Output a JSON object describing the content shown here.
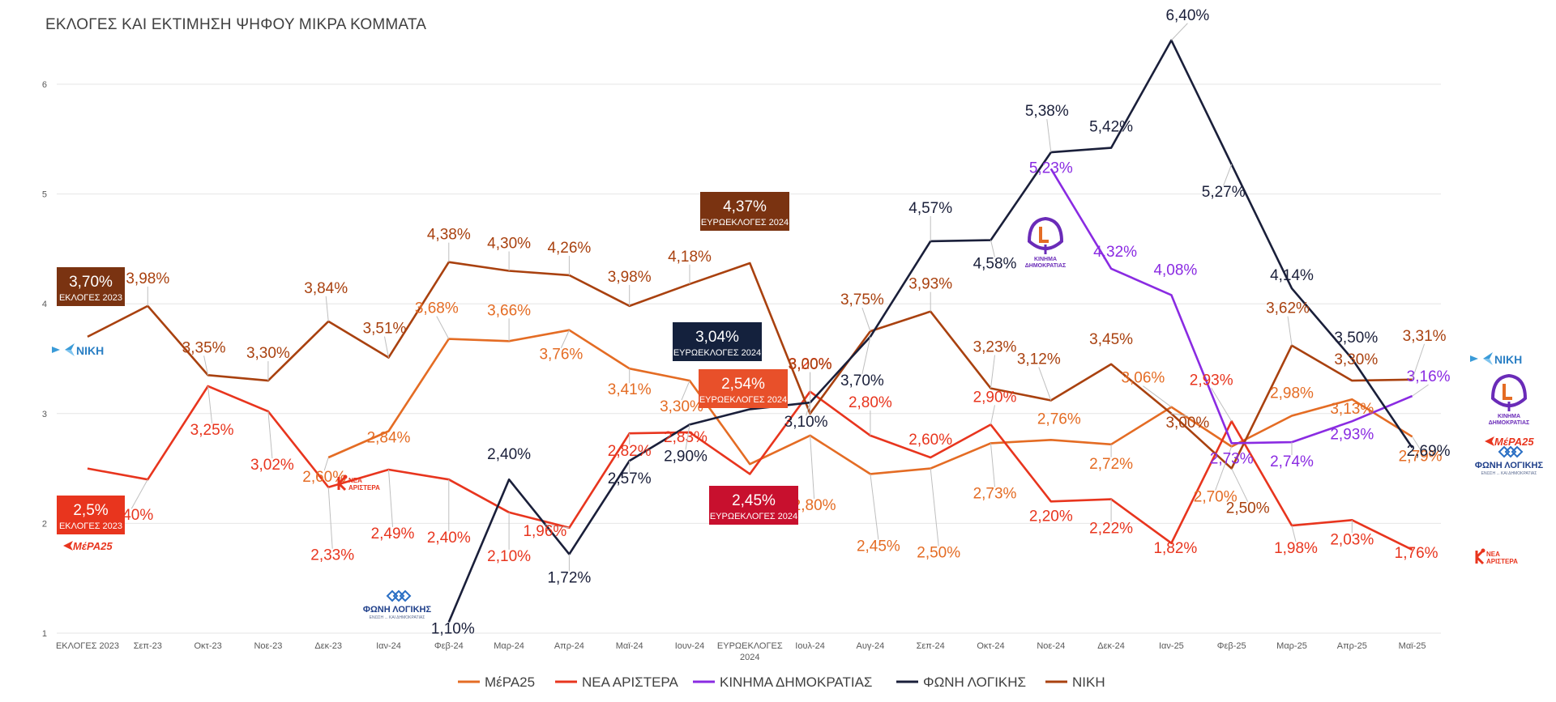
{
  "title": "ΕΚΛΟΓΕΣ ΚΑΙ ΕΚΤΙΜΗΣΗ  ΨΗΦΟΥ ΜΙΚΡΑ ΚΟΜΜΑΤΑ",
  "chart_data": {
    "type": "line",
    "title": "ΕΚΛΟΓΕΣ ΚΑΙ ΕΚΤΙΜΗΣΗ  ΨΗΦΟΥ ΜΙΚΡΑ ΚΟΜΜΑΤΑ",
    "categories": [
      "ΕΚΛΟΓΕΣ 2023",
      "Σεπ-23",
      "Οκτ-23",
      "Νοε-23",
      "Δεκ-23",
      "Ιαν-24",
      "Φεβ-24",
      "Μαρ-24",
      "Απρ-24",
      "Μαϊ-24",
      "Ιουν-24",
      "ΕΥΡΩΕΚΛΟΓΕΣ 2024",
      "Ιουλ-24",
      "Αυγ-24",
      "Σεπ-24",
      "Οκτ-24",
      "Νοε-24",
      "Δεκ-24",
      "Ιαν-25",
      "Φεβ-25",
      "Μαρ-25",
      "Απρ-25",
      "Μαϊ-25"
    ],
    "ylim": [
      1,
      6.6
    ],
    "yticks": [
      "1",
      "2",
      "3",
      "4",
      "5",
      "6"
    ],
    "grid": true,
    "legend_position": "bottom",
    "series": [
      {
        "name": "ΜέΡΑ25",
        "color": "#E46C24",
        "values": [
          null,
          null,
          null,
          null,
          2.6,
          2.84,
          3.68,
          3.66,
          3.76,
          3.41,
          3.3,
          2.54,
          2.8,
          2.45,
          2.5,
          2.73,
          2.76,
          2.72,
          3.06,
          2.7,
          2.98,
          3.13,
          2.79
        ],
        "labels": [
          "",
          "",
          "",
          "",
          "2,60%",
          "2,84%",
          "3,68%",
          "3,66%",
          "3,76%",
          "3,41%",
          "3,30%",
          "",
          "2,80%",
          "2,45%",
          "2,50%",
          "2,73%",
          "2,76%",
          "2,72%",
          "3,06%",
          "2,70%",
          "2,98%",
          "3,13%",
          "2,79%"
        ]
      },
      {
        "name": "ΝΕΑ ΑΡΙΣΤΕΡΑ",
        "color": "#E8351E",
        "values": [
          2.5,
          2.4,
          3.25,
          3.02,
          2.33,
          2.49,
          2.4,
          2.1,
          1.96,
          2.82,
          2.83,
          2.45,
          3.2,
          2.8,
          2.6,
          2.9,
          2.2,
          2.22,
          1.82,
          2.93,
          1.98,
          2.03,
          1.76
        ],
        "labels": [
          "",
          "2,40%",
          "3,25%",
          "3,02%",
          "2,33%",
          "2,49%",
          "2,40%",
          "2,10%",
          "1,96%",
          "2,82%",
          "2,83%",
          "",
          "3,20%",
          "2,80%",
          "2,60%",
          "2,90%",
          "2,20%",
          "2,22%",
          "1,82%",
          "2,93%",
          "1,98%",
          "2,03%",
          "1,76%"
        ]
      },
      {
        "name": "ΚΙΝΗΜΑ ΔΗΜΟΚΡΑΤΙΑΣ",
        "color": "#8A2BE2",
        "values": [
          null,
          null,
          null,
          null,
          null,
          null,
          null,
          null,
          null,
          null,
          null,
          null,
          null,
          null,
          null,
          null,
          5.23,
          4.32,
          4.08,
          2.73,
          2.74,
          2.93,
          3.16
        ],
        "labels": [
          "",
          "",
          "",
          "",
          "",
          "",
          "",
          "",
          "",
          "",
          "",
          "",
          "",
          "",
          "",
          "",
          "5,23%",
          "4,32%",
          "4,08%",
          "2,73%",
          "2,74%",
          "2,93%",
          "3,16%"
        ]
      },
      {
        "name": "ΦΩΝΗ ΛΟΓΙΚΗΣ",
        "color": "#1A1F3A",
        "values": [
          null,
          null,
          null,
          null,
          null,
          null,
          1.1,
          2.4,
          1.72,
          2.57,
          2.9,
          3.04,
          3.1,
          3.7,
          4.57,
          4.58,
          5.38,
          5.42,
          6.4,
          5.27,
          4.14,
          3.5,
          2.69
        ],
        "labels": [
          "",
          "",
          "",
          "",
          "",
          "",
          "1,10%",
          "2,40%",
          "1,72%",
          "2,57%",
          "2,90%",
          "",
          "3,10%",
          "3,70%",
          "4,57%",
          "4,58%",
          "5,38%",
          "5,42%",
          "6,40%",
          "5,27%",
          "4,14%",
          "3,50%",
          "2,69%"
        ]
      },
      {
        "name": "ΝΙΚΗ",
        "color": "#A9410F",
        "values": [
          3.7,
          3.98,
          3.35,
          3.3,
          3.84,
          3.51,
          4.38,
          4.3,
          4.26,
          3.98,
          4.18,
          4.37,
          3.0,
          3.75,
          3.93,
          3.23,
          3.12,
          3.45,
          3.0,
          2.5,
          3.62,
          3.3,
          3.31
        ],
        "labels": [
          "",
          "3,98%",
          "3,35%",
          "3,30%",
          "3,84%",
          "3,51%",
          "4,38%",
          "4,30%",
          "4,26%",
          "3,98%",
          "4,18%",
          "",
          "3,00%",
          "3,75%",
          "3,93%",
          "3,23%",
          "3,12%",
          "3,45%",
          "3,00%",
          "2,50%",
          "3,62%",
          "3,30%",
          "3,31%"
        ]
      }
    ],
    "callouts": [
      {
        "value": "3,70%",
        "sub": "ΕΚΛΟΓΕΣ 2023",
        "color": "#7A3311"
      },
      {
        "value": "2,5%",
        "sub": "ΕΚΛΟΓΕΣ 2023",
        "color": "#E8351E"
      },
      {
        "value": "4,37%",
        "sub": "ΕΥΡΩΕΚΛΟΓΕΣ 2024",
        "color": "#7A3311"
      },
      {
        "value": "3,04%",
        "sub": "ΕΥΡΩΕΚΛΟΓΕΣ 2024",
        "color": "#14213D"
      },
      {
        "value": "2,54%",
        "sub": "ΕΥΡΩΕΚΛΟΓΕΣ 2024",
        "color": "#E8502A"
      },
      {
        "value": "2,45%",
        "sub": "ΕΥΡΩΕΚΛΟΓΕΣ 2024",
        "color": "#C8102E"
      }
    ]
  },
  "logos": {
    "niki": "ΝΙΚΗ",
    "mera25": "ΜέΡΑ25",
    "nea_aristera_1": "ΝΕΑ",
    "nea_aristera_2": "ΑΡΙΣΤΕΡΑ",
    "foni_logikis": "ΦΩΝΗ ΛΟΓΙΚΗΣ",
    "foni_logikis_sub": "ΕΝΩΣΗ ... ΚΑΙ ΔΗΜΟΚΡΑΤΙΑΣ",
    "kinima_1": "ΚΙΝΗΜΑ",
    "kinima_2": "ΔΗΜΟΚΡΑΤΙΑΣ"
  }
}
